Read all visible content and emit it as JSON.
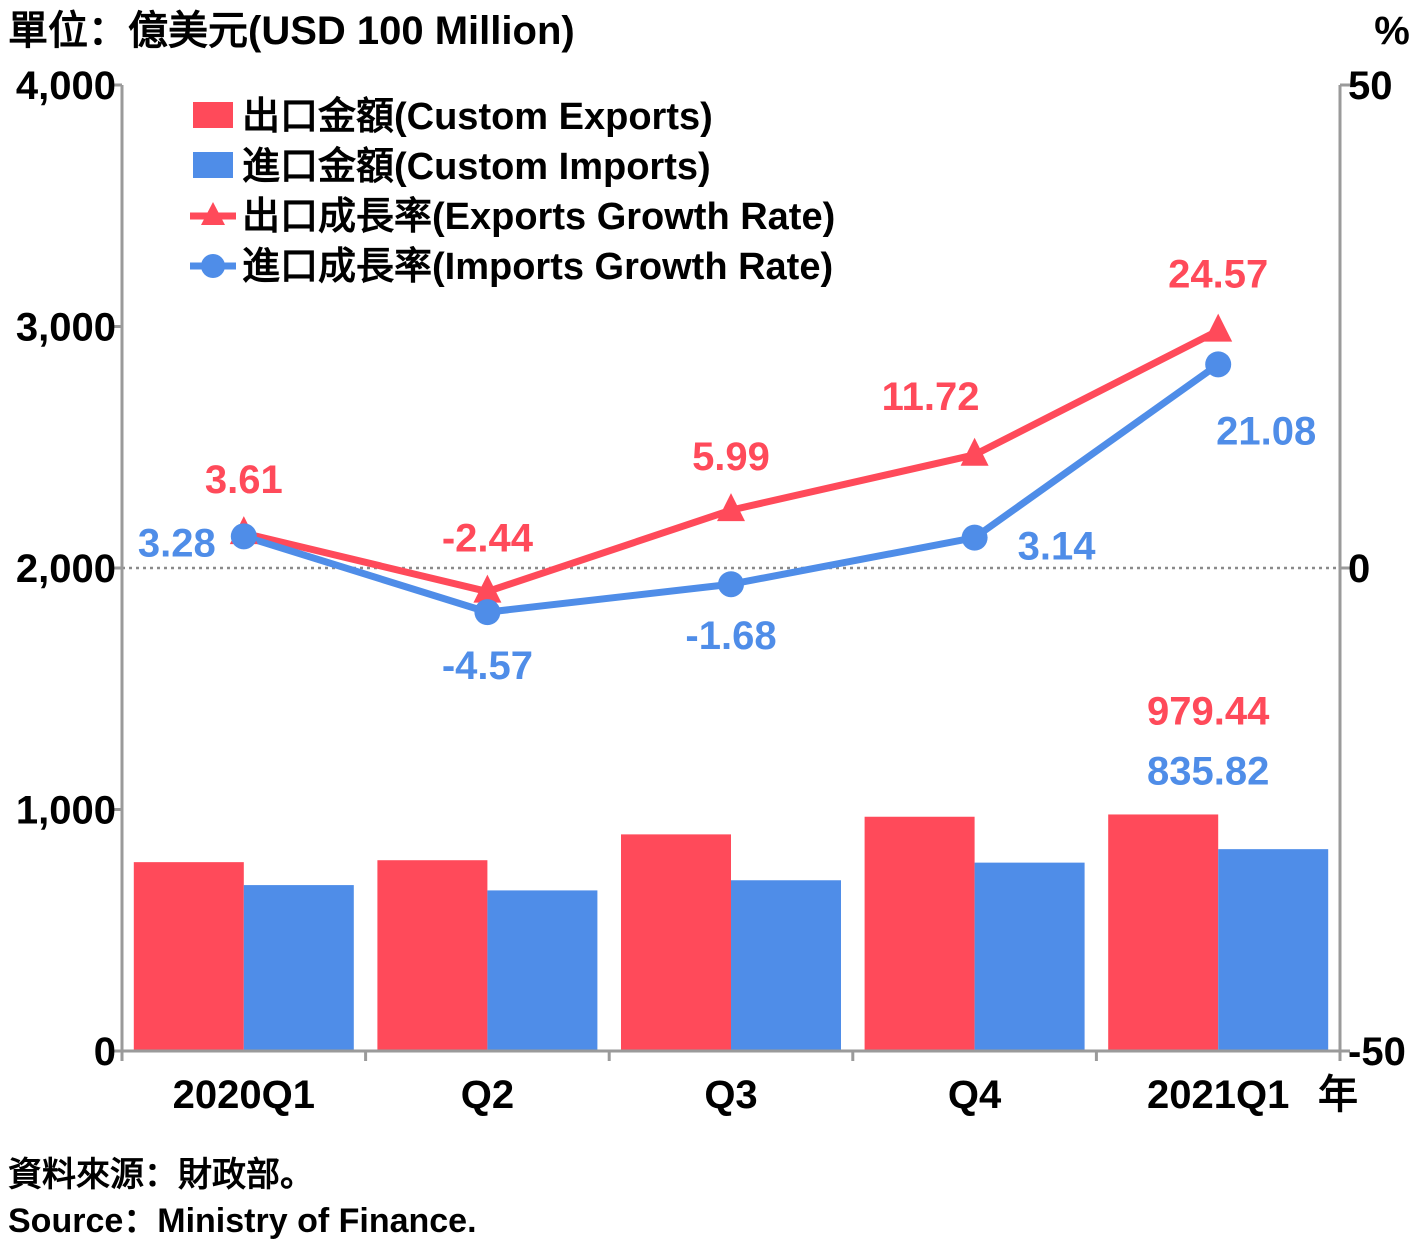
{
  "header": {
    "unit_label": "單位：億美元(USD 100 Million)",
    "right_unit": "%"
  },
  "footer": {
    "source_zh": "資料來源：財政部。",
    "source_en": "Source：Ministry of Finance."
  },
  "colors": {
    "exports": "#ff4a5a",
    "imports": "#4f8de8",
    "axis": "#9a9a9a",
    "zero_line": "#8a8a8a"
  },
  "chart_data": {
    "type": "bar",
    "categories": [
      "2020Q1",
      "Q2",
      "Q3",
      "Q4",
      "2021Q1"
    ],
    "x_suffix": "年",
    "left_axis": {
      "ticks": [
        "0",
        "1,000",
        "2,000",
        "3,000",
        "4,000"
      ],
      "range": [
        0,
        4000
      ]
    },
    "right_axis": {
      "ticks": [
        "-50",
        "0",
        "50"
      ],
      "range": [
        -50,
        50
      ]
    },
    "series": [
      {
        "name": "出口金額(Custom Exports)",
        "kind": "bar",
        "axis": "left",
        "values": [
          782,
          790,
          897,
          970,
          979.44
        ],
        "labels": [
          "",
          "",
          "",
          "",
          "979.44"
        ]
      },
      {
        "name": "進口金額(Custom Imports)",
        "kind": "bar",
        "axis": "left",
        "values": [
          687,
          665,
          707,
          780,
          835.82
        ],
        "labels": [
          "",
          "",
          "",
          "",
          "835.82"
        ]
      },
      {
        "name": "出口成長率(Exports Growth Rate)",
        "kind": "line",
        "marker": "triangle",
        "axis": "right",
        "values": [
          3.61,
          -2.44,
          5.99,
          11.72,
          24.57
        ],
        "labels": [
          "3.61",
          "-2.44",
          "5.99",
          "11.72",
          "24.57"
        ]
      },
      {
        "name": "進口成長率(Imports Growth Rate)",
        "kind": "line",
        "marker": "circle",
        "axis": "right",
        "values": [
          3.28,
          -4.57,
          -1.68,
          3.14,
          21.08
        ],
        "labels": [
          "3.28",
          "-4.57",
          "-1.68",
          "3.14",
          "21.08"
        ]
      }
    ],
    "legend_position": "top-left"
  }
}
